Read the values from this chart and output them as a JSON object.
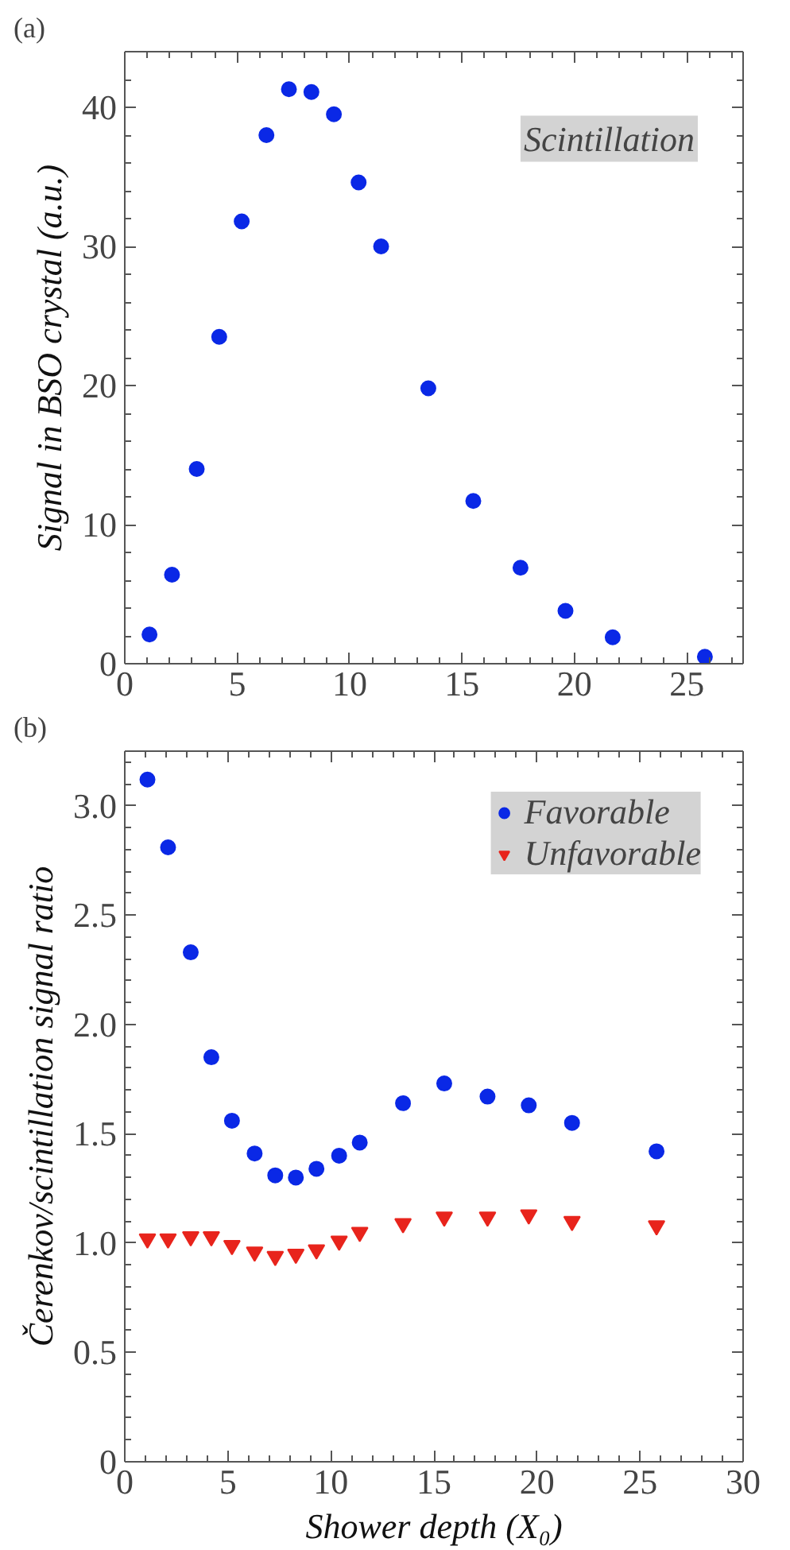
{
  "chart_data": [
    {
      "type": "scatter",
      "title": "(a)",
      "ylabel": "Signal in BSO crystal (a.u.)",
      "x": [
        1.1,
        2.1,
        3.2,
        4.2,
        5.2,
        6.3,
        7.3,
        8.3,
        9.3,
        10.4,
        11.4,
        13.5,
        15.5,
        17.6,
        19.6,
        21.7,
        25.8
      ],
      "series": [
        {
          "color": "#0a28e6",
          "values": [
            2.1,
            6.4,
            14.0,
            23.5,
            31.8,
            38.0,
            41.3,
            41.1,
            39.5,
            34.6,
            30.0,
            19.8,
            11.7,
            6.9,
            3.8,
            1.9,
            0.5
          ]
        }
      ],
      "xlim": [
        0,
        27.5
      ],
      "ylim": [
        0,
        44
      ],
      "xticks": [
        0,
        5,
        10,
        15,
        20,
        25
      ],
      "yticks": [
        0,
        10,
        20,
        30,
        40
      ],
      "marker": "circle",
      "grid": false,
      "legend": false,
      "annotations": [
        "Scintillation"
      ]
    },
    {
      "type": "scatter",
      "title": "(b)",
      "xlabel": "Shower depth (X₀)",
      "ylabel": "Čerenkov/scintillation signal ratio",
      "x": [
        1.1,
        2.1,
        3.2,
        4.2,
        5.2,
        6.3,
        7.3,
        8.3,
        9.3,
        10.4,
        11.4,
        13.5,
        15.5,
        17.6,
        19.6,
        21.7,
        25.8
      ],
      "series": [
        {
          "name": "Favorable",
          "color": "#0a28e6",
          "marker": "circle",
          "values": [
            3.12,
            2.81,
            2.33,
            1.85,
            1.56,
            1.41,
            1.31,
            1.3,
            1.34,
            1.4,
            1.46,
            1.64,
            1.73,
            1.67,
            1.63,
            1.55,
            1.42
          ]
        },
        {
          "name": "Unfavorable",
          "color": "#e8241c",
          "marker": "triangle",
          "values": [
            1.02,
            1.02,
            1.03,
            1.03,
            0.99,
            0.96,
            0.94,
            0.95,
            0.97,
            1.01,
            1.05,
            1.09,
            1.12,
            1.12,
            1.13,
            1.1,
            1.08
          ]
        }
      ],
      "xlim": [
        0,
        30
      ],
      "ylim": [
        0,
        3.25
      ],
      "xticks": [
        0,
        5,
        10,
        15,
        20,
        25,
        30
      ],
      "yticks": [
        0,
        {
          "value": 0.5,
          "label": "0.5"
        },
        {
          "value": 1,
          "label": "1.0"
        },
        {
          "value": 1.5,
          "label": "1.5"
        },
        {
          "value": 2,
          "label": "2.0"
        },
        {
          "value": 2.5,
          "label": "2.5"
        },
        {
          "value": 3,
          "label": "3.0"
        }
      ],
      "grid": false,
      "legend": "top right"
    }
  ]
}
